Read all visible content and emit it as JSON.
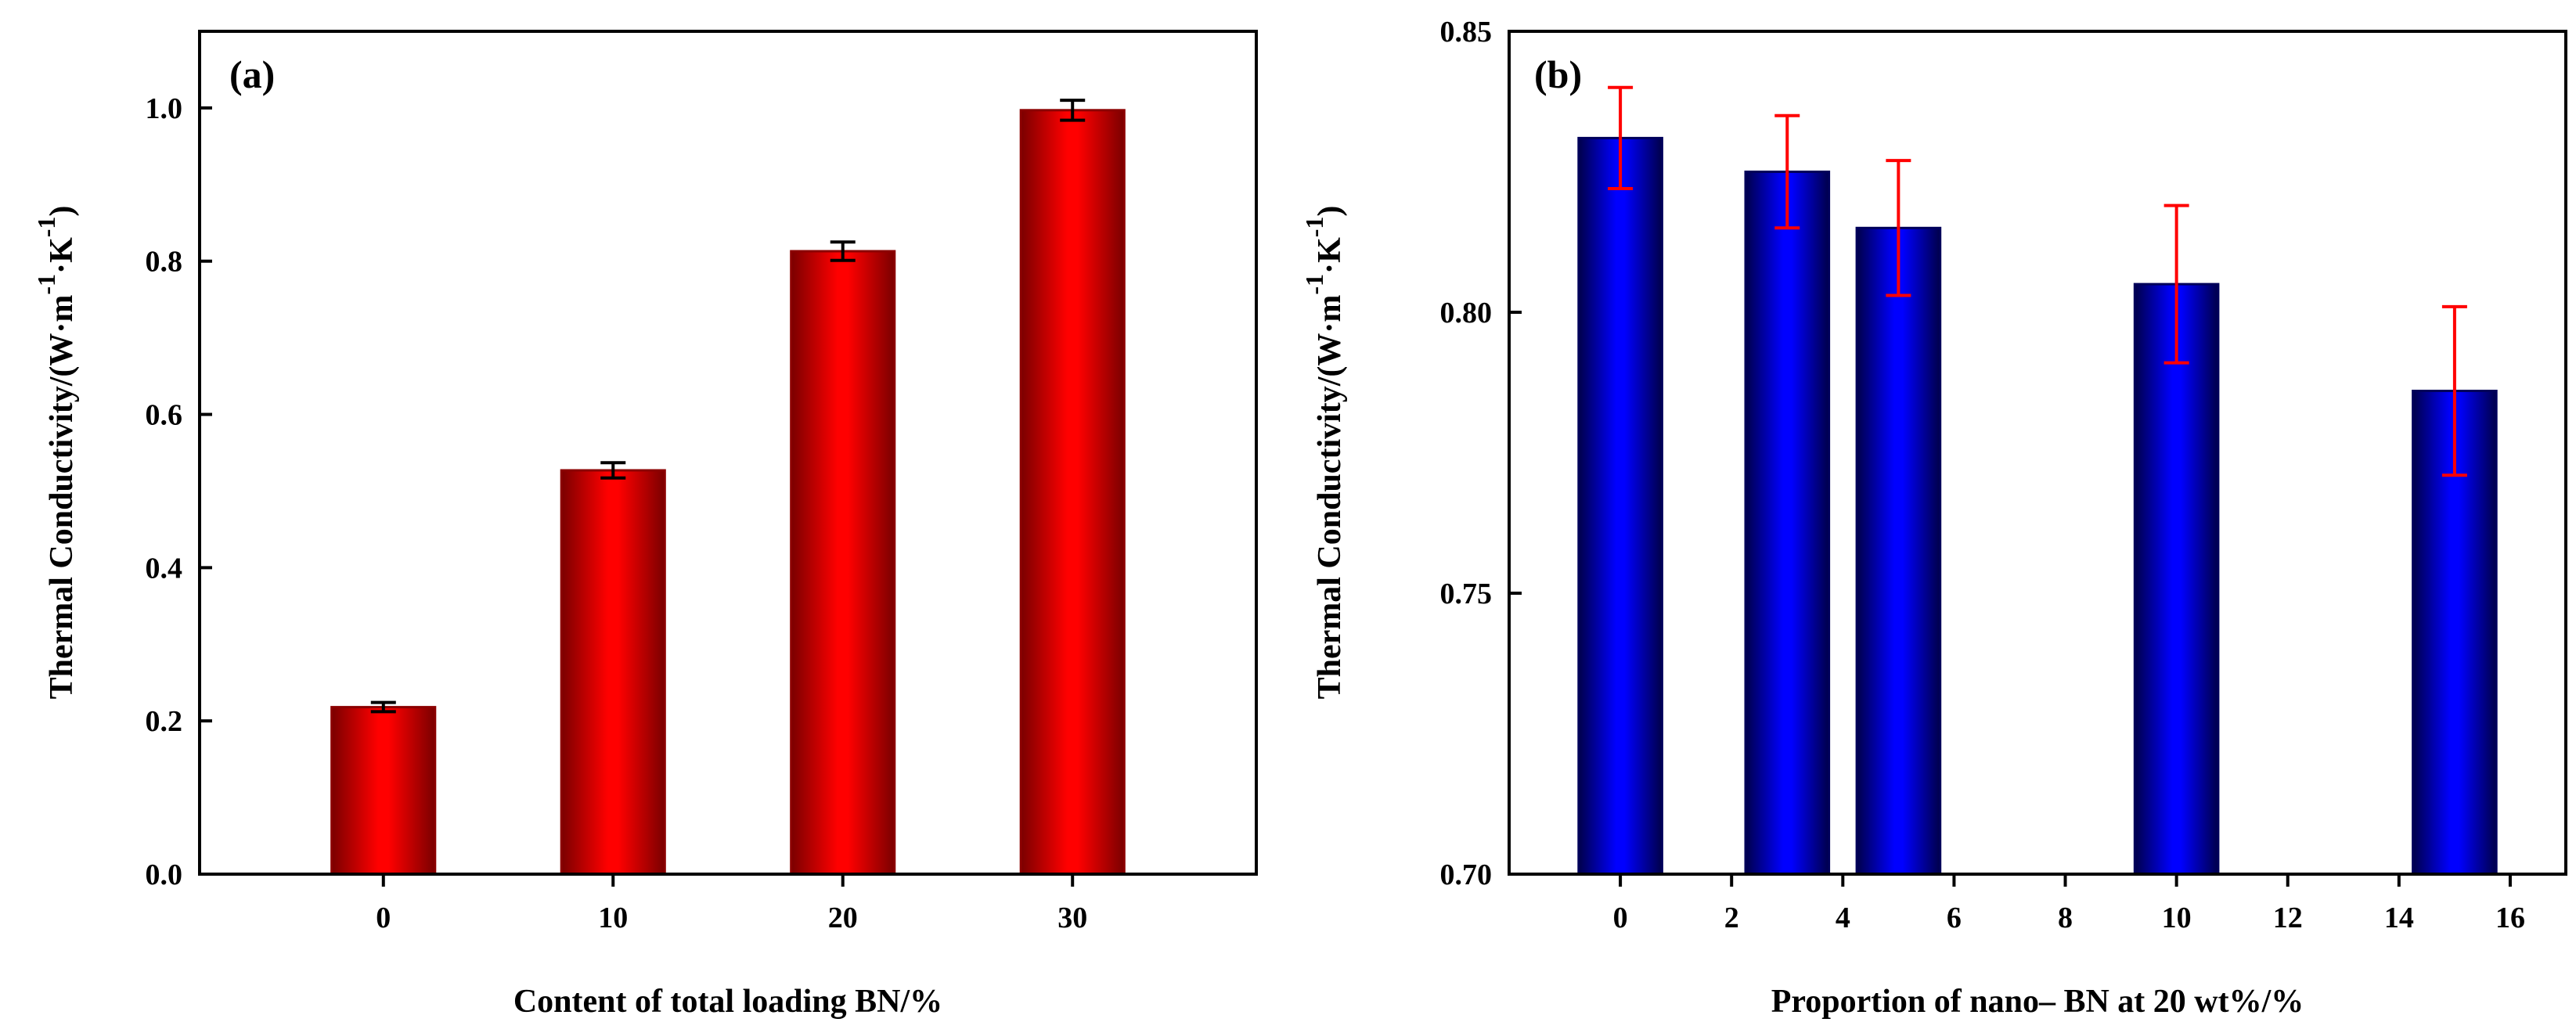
{
  "figure": {
    "panels": [
      {
        "label": "(a)"
      },
      {
        "label": "(b)"
      }
    ]
  },
  "chart_data": [
    {
      "type": "bar",
      "panel": "(a)",
      "title": "",
      "xlabel": "Content of total loading BN/%",
      "ylabel": "Thermal Conductivity/(W·m-1·K-1)",
      "ylabel_parts": {
        "main": "Thermal Conductivity/(W·m",
        "exp1": "-1",
        "mid": "·K",
        "exp2": "-1",
        "close": ")"
      },
      "x": [
        0,
        10,
        20,
        30
      ],
      "values": [
        0.218,
        0.527,
        0.813,
        0.997
      ],
      "errors": [
        0.006,
        0.01,
        0.012,
        0.013
      ],
      "xlim": [
        -8,
        38
      ],
      "ylim": [
        0.0,
        1.1
      ],
      "xticks": [
        0,
        10,
        20,
        30
      ],
      "xtick_labels": [
        "0",
        "10",
        "20",
        "30"
      ],
      "yticks": [
        0.0,
        0.2,
        0.4,
        0.6,
        0.8,
        1.0
      ],
      "ytick_labels": [
        "0.0",
        "0.2",
        "0.4",
        "0.6",
        "0.8",
        "1.0"
      ],
      "bar_width": 4.5,
      "bar_color": "#ff0000",
      "bar_edge_color": "#8b0000",
      "error_color": "#000000"
    },
    {
      "type": "bar",
      "panel": "(b)",
      "title": "",
      "xlabel": "Proportion of nano– BN at 20 wt%/%",
      "ylabel": "Thermal Conductivity/(W·m-1·K-1)",
      "ylabel_parts": {
        "main": "Thermal Conductivity/(W·m",
        "exp1": "-1",
        "mid": "·K",
        "exp2": "-1",
        "close": ")"
      },
      "x": [
        0,
        3,
        5,
        10,
        15
      ],
      "values": [
        0.831,
        0.825,
        0.815,
        0.805,
        0.786
      ],
      "errors": [
        0.009,
        0.01,
        0.012,
        0.014,
        0.015
      ],
      "xlim": [
        -2,
        17
      ],
      "ylim": [
        0.7,
        0.85
      ],
      "xticks": [
        0,
        2,
        4,
        6,
        8,
        10,
        12,
        14,
        16
      ],
      "xtick_labels": [
        "0",
        "2",
        "4",
        "6",
        "8",
        "10",
        "12",
        "14",
        "16"
      ],
      "yticks": [
        0.7,
        0.75,
        0.8,
        0.85
      ],
      "ytick_labels": [
        "0.70",
        "0.75",
        "0.80",
        "0.85"
      ],
      "bar_width": 1.5,
      "bar_color": "#0000ff",
      "bar_edge_color": "#00005a",
      "error_color": "#ff0000"
    }
  ]
}
